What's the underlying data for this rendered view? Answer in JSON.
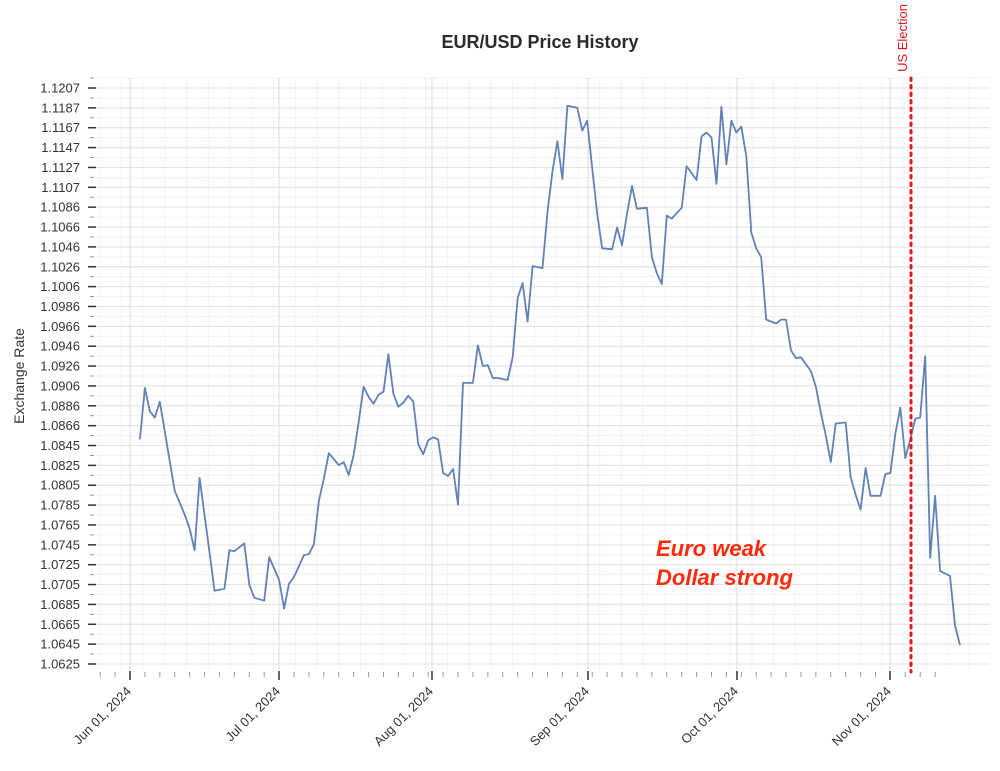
{
  "chart_data": {
    "type": "line",
    "title": "EUR/USD Price History",
    "xlabel": "",
    "ylabel": "Exchange Rate",
    "ylim": [
      1.0625,
      1.1207
    ],
    "yticks": [
      "1.1207",
      "1.1187",
      "1.1167",
      "1.1147",
      "1.1127",
      "1.1107",
      "1.1086",
      "1.1066",
      "1.1046",
      "1.1026",
      "1.1006",
      "1.0986",
      "1.0966",
      "1.0946",
      "1.0926",
      "1.0906",
      "1.0886",
      "1.0866",
      "1.0845",
      "1.0825",
      "1.0805",
      "1.0785",
      "1.0765",
      "1.0745",
      "1.0725",
      "1.0705",
      "1.0685",
      "1.0665",
      "1.0645",
      "1.0625"
    ],
    "xticks": [
      "Jun 01, 2024",
      "Jul 01, 2024",
      "Aug 01, 2024",
      "Sep 01, 2024",
      "Oct 01, 2024",
      "Nov 01, 2024"
    ],
    "grid": true,
    "line_color": "#6082b6",
    "series": [
      {
        "name": "EUR/USD",
        "points": [
          [
            "2024-06-03",
            1.0852
          ],
          [
            "2024-06-04",
            1.0904
          ],
          [
            "2024-06-05",
            1.088
          ],
          [
            "2024-06-06",
            1.0874
          ],
          [
            "2024-06-07",
            1.089
          ],
          [
            "2024-06-10",
            1.08
          ],
          [
            "2024-06-11",
            1.0788
          ],
          [
            "2024-06-12",
            1.0776
          ],
          [
            "2024-06-13",
            1.0762
          ],
          [
            "2024-06-14",
            1.074
          ],
          [
            "2024-06-15",
            1.0813
          ],
          [
            "2024-06-17",
            1.0738
          ],
          [
            "2024-06-18",
            1.0699
          ],
          [
            "2024-06-20",
            1.0701
          ],
          [
            "2024-06-21",
            1.074
          ],
          [
            "2024-06-22",
            1.0739
          ],
          [
            "2024-06-24",
            1.0747
          ],
          [
            "2024-06-25",
            1.0705
          ],
          [
            "2024-06-26",
            1.0692
          ],
          [
            "2024-06-28",
            1.0689
          ],
          [
            "2024-06-29",
            1.0733
          ],
          [
            "2024-07-01",
            1.071
          ],
          [
            "2024-07-02",
            1.0681
          ],
          [
            "2024-07-03",
            1.0706
          ],
          [
            "2024-07-04",
            1.0713
          ],
          [
            "2024-07-05",
            1.0724
          ],
          [
            "2024-07-06",
            1.0735
          ],
          [
            "2024-07-07",
            1.0736
          ],
          [
            "2024-07-08",
            1.0746
          ],
          [
            "2024-07-09",
            1.079
          ],
          [
            "2024-07-10",
            1.0812
          ],
          [
            "2024-07-11",
            1.0838
          ],
          [
            "2024-07-12",
            1.0832
          ],
          [
            "2024-07-13",
            1.0826
          ],
          [
            "2024-07-14",
            1.0829
          ],
          [
            "2024-07-15",
            1.0816
          ],
          [
            "2024-07-16",
            1.0836
          ],
          [
            "2024-07-17",
            1.0869
          ],
          [
            "2024-07-18",
            1.0905
          ],
          [
            "2024-07-19",
            1.0895
          ],
          [
            "2024-07-20",
            1.0888
          ],
          [
            "2024-07-21",
            1.0897
          ],
          [
            "2024-07-22",
            1.09
          ],
          [
            "2024-07-23",
            1.0938
          ],
          [
            "2024-07-24",
            1.0898
          ],
          [
            "2024-07-25",
            1.0885
          ],
          [
            "2024-07-26",
            1.0889
          ],
          [
            "2024-07-27",
            1.0896
          ],
          [
            "2024-07-28",
            1.089
          ],
          [
            "2024-07-29",
            1.0847
          ],
          [
            "2024-07-30",
            1.0837
          ],
          [
            "2024-07-31",
            1.0851
          ],
          [
            "2024-08-01",
            1.0854
          ],
          [
            "2024-08-02",
            1.0852
          ],
          [
            "2024-08-03",
            1.0818
          ],
          [
            "2024-08-04",
            1.0815
          ],
          [
            "2024-08-05",
            1.0822
          ],
          [
            "2024-08-06",
            1.0786
          ],
          [
            "2024-08-07",
            1.0909
          ],
          [
            "2024-08-09",
            1.0909
          ],
          [
            "2024-08-10",
            1.0947
          ],
          [
            "2024-08-11",
            1.0926
          ],
          [
            "2024-08-12",
            1.0927
          ],
          [
            "2024-08-13",
            1.0914
          ],
          [
            "2024-08-14",
            1.0914
          ],
          [
            "2024-08-16",
            1.0912
          ],
          [
            "2024-08-17",
            1.0935
          ],
          [
            "2024-08-18",
            1.0995
          ],
          [
            "2024-08-19",
            1.101
          ],
          [
            "2024-08-20",
            1.0971
          ],
          [
            "2024-08-21",
            1.1027
          ],
          [
            "2024-08-23",
            1.1025
          ],
          [
            "2024-08-24",
            1.1082
          ],
          [
            "2024-08-25",
            1.1123
          ],
          [
            "2024-08-26",
            1.1153
          ],
          [
            "2024-08-27",
            1.1115
          ],
          [
            "2024-08-28",
            1.1189
          ],
          [
            "2024-08-30",
            1.1187
          ],
          [
            "2024-08-31",
            1.1164
          ],
          [
            "2024-09-01",
            1.1174
          ],
          [
            "2024-09-02",
            1.1126
          ],
          [
            "2024-09-03",
            1.108
          ],
          [
            "2024-09-04",
            1.1045
          ],
          [
            "2024-09-06",
            1.1044
          ],
          [
            "2024-09-07",
            1.1066
          ],
          [
            "2024-09-08",
            1.1048
          ],
          [
            "2024-09-09",
            1.108
          ],
          [
            "2024-09-10",
            1.1108
          ],
          [
            "2024-09-11",
            1.1085
          ],
          [
            "2024-09-13",
            1.1086
          ],
          [
            "2024-09-14",
            1.1036
          ],
          [
            "2024-09-15",
            1.102
          ],
          [
            "2024-09-16",
            1.1009
          ],
          [
            "2024-09-17",
            1.1078
          ],
          [
            "2024-09-18",
            1.1075
          ],
          [
            "2024-09-20",
            1.1086
          ],
          [
            "2024-09-21",
            1.1128
          ],
          [
            "2024-09-23",
            1.1114
          ],
          [
            "2024-09-24",
            1.1158
          ],
          [
            "2024-09-25",
            1.1162
          ],
          [
            "2024-09-26",
            1.1157
          ],
          [
            "2024-09-27",
            1.111
          ],
          [
            "2024-09-28",
            1.1188
          ],
          [
            "2024-09-29",
            1.113
          ],
          [
            "2024-09-30",
            1.1174
          ],
          [
            "2024-10-01",
            1.1162
          ],
          [
            "2024-10-02",
            1.1168
          ],
          [
            "2024-10-03",
            1.1138
          ],
          [
            "2024-10-04",
            1.1061
          ],
          [
            "2024-10-05",
            1.1045
          ],
          [
            "2024-10-06",
            1.1036
          ],
          [
            "2024-10-07",
            1.0973
          ],
          [
            "2024-10-09",
            1.0969
          ],
          [
            "2024-10-10",
            1.0973
          ],
          [
            "2024-10-11",
            1.0973
          ],
          [
            "2024-10-12",
            1.0942
          ],
          [
            "2024-10-13",
            1.0934
          ],
          [
            "2024-10-14",
            1.0935
          ],
          [
            "2024-10-15",
            1.0928
          ],
          [
            "2024-10-16",
            1.0921
          ],
          [
            "2024-10-17",
            1.0905
          ],
          [
            "2024-10-18",
            1.0879
          ],
          [
            "2024-10-19",
            1.0856
          ],
          [
            "2024-10-20",
            1.0829
          ],
          [
            "2024-10-21",
            1.0868
          ],
          [
            "2024-10-23",
            1.0869
          ],
          [
            "2024-10-24",
            1.0814
          ],
          [
            "2024-10-25",
            1.0796
          ],
          [
            "2024-10-26",
            1.0781
          ],
          [
            "2024-10-27",
            1.0823
          ],
          [
            "2024-10-28",
            1.0795
          ],
          [
            "2024-10-30",
            1.0795
          ],
          [
            "2024-10-31",
            1.0817
          ],
          [
            "2024-11-01",
            1.0818
          ],
          [
            "2024-11-02",
            1.0858
          ],
          [
            "2024-11-03",
            1.0884
          ],
          [
            "2024-11-04",
            1.0833
          ],
          [
            "2024-11-05",
            1.0852
          ],
          [
            "2024-11-06",
            1.0873
          ],
          [
            "2024-11-07",
            1.0874
          ],
          [
            "2024-11-08",
            1.0936
          ],
          [
            "2024-11-09",
            1.0732
          ],
          [
            "2024-11-10",
            1.0795
          ],
          [
            "2024-11-11",
            1.0719
          ],
          [
            "2024-11-13",
            1.0714
          ],
          [
            "2024-11-14",
            1.0664
          ],
          [
            "2024-11-15",
            1.0644
          ]
        ]
      }
    ],
    "annotations": [
      {
        "type": "vline",
        "date": "2024-11-07",
        "label": "US Election",
        "color": "#e8141e",
        "style": "dotted"
      },
      {
        "type": "text",
        "lines": [
          "Euro weak",
          "Dollar strong"
        ],
        "color": "#ff2a0a"
      }
    ]
  }
}
